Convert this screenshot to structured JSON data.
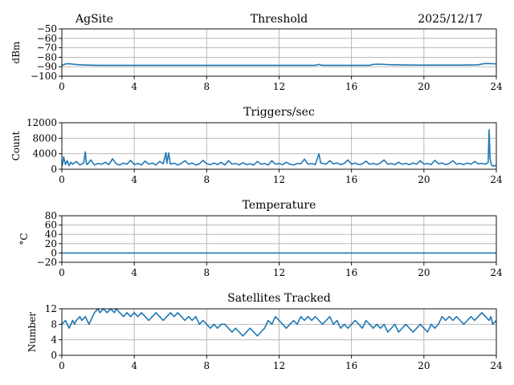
{
  "header": {
    "site": "AgSite",
    "date": "2025/12/17"
  },
  "colors": {
    "series": "#1f77b4",
    "grid": "#b0b0b0"
  },
  "chart_data": [
    {
      "type": "line",
      "title": "Threshold",
      "xlabel": "",
      "ylabel": "dBm",
      "xlim": [
        0,
        24
      ],
      "ylim": [
        -100,
        -50
      ],
      "xticks": [
        0,
        4,
        8,
        12,
        16,
        20,
        24
      ],
      "xtick_labels": [
        "0",
        "4",
        "8",
        "12",
        "16",
        "20",
        "24"
      ],
      "yticks": [
        -100,
        -90,
        -80,
        -70,
        -60,
        -50
      ],
      "ytick_labels": [
        "−100",
        "−90",
        "−80",
        "−70",
        "−60",
        "−50"
      ],
      "grid": true,
      "series": [
        {
          "x": [
            0,
            0.1,
            0.2,
            0.35,
            0.5,
            0.7,
            1.0,
            1.5,
            2.0,
            3.0,
            4.0,
            5.0,
            6.0,
            7.0,
            8.0,
            9.0,
            10.0,
            11.0,
            12.0,
            13.0,
            14.0,
            14.2,
            14.3,
            14.5,
            15.0,
            16.0,
            17.0,
            17.2,
            17.5,
            17.8,
            18.0,
            18.5,
            19.0,
            20.0,
            21.0,
            22.0,
            23.0,
            23.3,
            23.5,
            23.8,
            24.0
          ],
          "y": [
            -88.5,
            -88,
            -87,
            -86.8,
            -87,
            -87.5,
            -88,
            -88.3,
            -88.5,
            -88.5,
            -88.5,
            -88.5,
            -88.5,
            -88.5,
            -88.5,
            -88.5,
            -88.5,
            -88.5,
            -88.5,
            -88.5,
            -88.5,
            -87.5,
            -88.3,
            -88.5,
            -88.5,
            -88.5,
            -88.5,
            -87.5,
            -87.3,
            -87.5,
            -87.8,
            -88,
            -88.2,
            -88.3,
            -88.3,
            -88.3,
            -88,
            -86.8,
            -86.6,
            -86.8,
            -87
          ]
        }
      ]
    },
    {
      "type": "line",
      "title": "Triggers/sec",
      "xlabel": "",
      "ylabel": "Count",
      "xlim": [
        0,
        24
      ],
      "ylim": [
        0,
        12000
      ],
      "xticks": [
        0,
        4,
        8,
        12,
        16,
        20,
        24
      ],
      "xtick_labels": [
        "0",
        "4",
        "8",
        "12",
        "16",
        "20",
        "24"
      ],
      "yticks": [
        0,
        4000,
        8000,
        12000
      ],
      "ytick_labels": [
        "0",
        "4000",
        "8000",
        "12000"
      ],
      "grid": true,
      "series": [
        {
          "x": [
            0,
            0.05,
            0.1,
            0.2,
            0.3,
            0.4,
            0.5,
            0.6,
            0.8,
            1.0,
            1.2,
            1.3,
            1.35,
            1.4,
            1.6,
            1.8,
            2.0,
            2.2,
            2.4,
            2.6,
            2.8,
            3.0,
            3.2,
            3.4,
            3.6,
            3.8,
            4.0,
            4.2,
            4.4,
            4.6,
            4.8,
            5.0,
            5.2,
            5.4,
            5.6,
            5.75,
            5.8,
            5.9,
            6.0,
            6.2,
            6.4,
            6.6,
            6.8,
            7.0,
            7.2,
            7.4,
            7.6,
            7.8,
            8.0,
            8.2,
            8.4,
            8.6,
            8.8,
            9.0,
            9.2,
            9.4,
            9.6,
            9.8,
            10.0,
            10.2,
            10.4,
            10.6,
            10.8,
            11.0,
            11.2,
            11.4,
            11.6,
            11.8,
            12.0,
            12.2,
            12.4,
            12.6,
            12.8,
            13.0,
            13.2,
            13.4,
            13.6,
            13.8,
            14.0,
            14.2,
            14.3,
            14.4,
            14.6,
            14.8,
            15.0,
            15.2,
            15.4,
            15.6,
            15.8,
            16.0,
            16.2,
            16.4,
            16.6,
            16.8,
            17.0,
            17.2,
            17.4,
            17.6,
            17.8,
            18.0,
            18.2,
            18.4,
            18.6,
            18.8,
            19.0,
            19.2,
            19.4,
            19.6,
            19.8,
            20.0,
            20.2,
            20.4,
            20.6,
            20.8,
            21.0,
            21.2,
            21.4,
            21.6,
            21.8,
            22.0,
            22.2,
            22.4,
            22.6,
            22.8,
            23.0,
            23.2,
            23.4,
            23.5,
            23.55,
            23.6,
            23.65,
            23.7,
            23.8,
            24.0
          ],
          "y": [
            800,
            1500,
            3200,
            1200,
            2200,
            900,
            1800,
            1300,
            2000,
            1100,
            1600,
            4500,
            1500,
            1200,
            2400,
            1100,
            1500,
            1300,
            1800,
            1200,
            2700,
            1400,
            1100,
            1600,
            1300,
            2300,
            1200,
            1500,
            1100,
            2100,
            1300,
            1600,
            1100,
            2000,
            1400,
            4300,
            1500,
            4200,
            1300,
            1600,
            1100,
            1500,
            2200,
            1300,
            1600,
            1100,
            1400,
            2300,
            1400,
            1200,
            1600,
            1200,
            1800,
            1100,
            2200,
            1300,
            1500,
            1100,
            1700,
            1200,
            1400,
            1100,
            2000,
            1300,
            1500,
            1100,
            2200,
            1300,
            1500,
            1200,
            1800,
            1300,
            1100,
            1500,
            1400,
            2600,
            1300,
            1500,
            1200,
            4000,
            1600,
            1500,
            1300,
            2200,
            1400,
            1600,
            1200,
            1500,
            2400,
            1300,
            1600,
            1200,
            1400,
            2100,
            1300,
            1500,
            1200,
            1600,
            2400,
            1300,
            1500,
            1200,
            1800,
            1300,
            1500,
            1200,
            1600,
            1300,
            2200,
            1300,
            1500,
            1200,
            2300,
            1400,
            1600,
            1200,
            1500,
            2200,
            1300,
            1500,
            1200,
            1600,
            1300,
            2000,
            1400,
            1500,
            1300,
            1600,
            1800,
            10200,
            3000,
            1500,
            800,
            1000
          ]
        }
      ]
    },
    {
      "type": "line",
      "title": "Temperature",
      "xlabel": "",
      "ylabel": "°C",
      "xlim": [
        0,
        24
      ],
      "ylim": [
        -20,
        80
      ],
      "xticks": [
        0,
        4,
        8,
        12,
        16,
        20,
        24
      ],
      "xtick_labels": [
        "0",
        "4",
        "8",
        "12",
        "16",
        "20",
        "24"
      ],
      "yticks": [
        -20,
        0,
        20,
        40,
        60,
        80
      ],
      "ytick_labels": [
        "−20",
        "0",
        "20",
        "40",
        "60",
        "80"
      ],
      "grid": true,
      "series": [
        {
          "x": [
            0,
            24
          ],
          "y": [
            0,
            0
          ]
        }
      ]
    },
    {
      "type": "line",
      "title": "Satellites Tracked",
      "xlabel": "",
      "ylabel": "Number",
      "xlim": [
        0,
        24
      ],
      "ylim": [
        0,
        12
      ],
      "xticks": [
        0,
        4,
        8,
        12,
        16,
        20,
        24
      ],
      "xtick_labels": [
        "0",
        "4",
        "8",
        "12",
        "16",
        "20",
        "24"
      ],
      "yticks": [
        0,
        4,
        8,
        12
      ],
      "ytick_labels": [
        "0",
        "4",
        "8",
        "12"
      ],
      "grid": true,
      "series": [
        {
          "x": [
            0,
            0.2,
            0.3,
            0.4,
            0.5,
            0.6,
            0.7,
            0.8,
            1.0,
            1.1,
            1.3,
            1.5,
            1.6,
            1.8,
            2.0,
            2.1,
            2.3,
            2.5,
            2.7,
            2.9,
            3.0,
            3.2,
            3.4,
            3.6,
            3.8,
            4.0,
            4.2,
            4.4,
            4.6,
            4.8,
            5.0,
            5.2,
            5.4,
            5.6,
            5.8,
            6.0,
            6.2,
            6.4,
            6.6,
            6.8,
            7.0,
            7.2,
            7.4,
            7.6,
            7.8,
            8.0,
            8.2,
            8.4,
            8.6,
            8.8,
            9.0,
            9.2,
            9.4,
            9.6,
            9.8,
            10.0,
            10.2,
            10.4,
            10.6,
            10.8,
            11.0,
            11.2,
            11.4,
            11.6,
            11.8,
            12.0,
            12.2,
            12.4,
            12.6,
            12.8,
            13.0,
            13.2,
            13.4,
            13.6,
            13.8,
            14.0,
            14.2,
            14.4,
            14.6,
            14.8,
            15.0,
            15.2,
            15.4,
            15.6,
            15.8,
            16.0,
            16.2,
            16.4,
            16.6,
            16.8,
            17.0,
            17.2,
            17.4,
            17.6,
            17.8,
            18.0,
            18.2,
            18.4,
            18.6,
            18.8,
            19.0,
            19.2,
            19.4,
            19.6,
            19.8,
            20.0,
            20.2,
            20.4,
            20.6,
            20.8,
            21.0,
            21.2,
            21.4,
            21.6,
            21.8,
            22.0,
            22.2,
            22.4,
            22.6,
            22.8,
            23.0,
            23.2,
            23.4,
            23.6,
            23.7,
            23.8,
            24.0
          ],
          "y": [
            8,
            9,
            8,
            7,
            8,
            9,
            8,
            9,
            10,
            9,
            10,
            8,
            9,
            11,
            12,
            11,
            12,
            11,
            12,
            11,
            12,
            11,
            10,
            11,
            10,
            11,
            10,
            11,
            10,
            9,
            10,
            11,
            10,
            9,
            10,
            11,
            10,
            11,
            10,
            9,
            10,
            9,
            10,
            8,
            9,
            8,
            7,
            8,
            7,
            8,
            8,
            7,
            6,
            7,
            6,
            5,
            6,
            7,
            6,
            5,
            6,
            7,
            9,
            8,
            10,
            9,
            8,
            7,
            8,
            9,
            8,
            10,
            9,
            10,
            9,
            10,
            9,
            8,
            9,
            10,
            8,
            9,
            7,
            8,
            7,
            8,
            9,
            8,
            7,
            9,
            8,
            7,
            8,
            7,
            8,
            6,
            7,
            8,
            6,
            7,
            8,
            7,
            6,
            7,
            8,
            7,
            6,
            8,
            7,
            8,
            10,
            9,
            10,
            9,
            10,
            9,
            8,
            9,
            10,
            9,
            10,
            11,
            10,
            9,
            10,
            8,
            9
          ]
        }
      ]
    }
  ]
}
